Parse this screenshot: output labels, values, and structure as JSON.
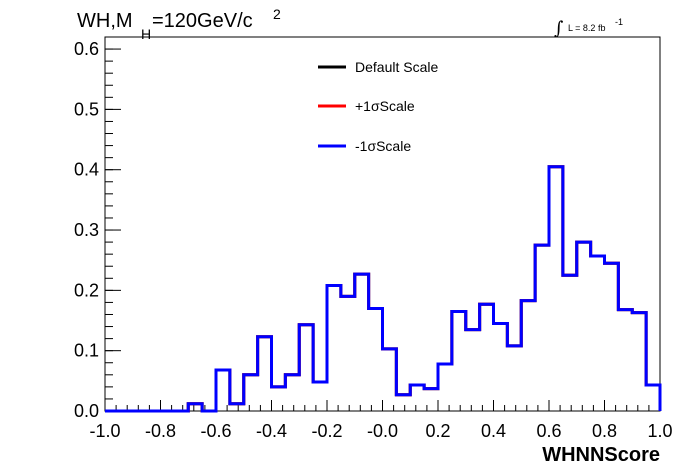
{
  "chart_data": {
    "type": "step",
    "title": {
      "prefix": "WH,M",
      "sub": "H",
      "suffix": "=120GeV/c",
      "sup": "2"
    },
    "lumi": {
      "symbol": "∫",
      "text": "L = 8.2 fb",
      "sup": "-1"
    },
    "xlabel": "WHNNScore",
    "ylabel": "",
    "xlim": [
      -1.0,
      1.0
    ],
    "ylim": [
      0.0,
      0.62
    ],
    "x_ticks": [
      "-1.0",
      "-0.8",
      "-0.6",
      "-0.4",
      "-0.2",
      "-0.0",
      "0.2",
      "0.4",
      "0.6",
      "0.8",
      "1.0"
    ],
    "y_ticks": [
      "0.0",
      "0.1",
      "0.2",
      "0.3",
      "0.4",
      "0.5",
      "0.6"
    ],
    "bin_edges_start": -1.0,
    "bin_width": 0.05,
    "legend": {
      "placement": "top-center",
      "entries": [
        {
          "label": "Default Scale",
          "color": "#000000"
        },
        {
          "label": "+1σScale",
          "color": "#ff0000"
        },
        {
          "label": "-1σScale",
          "color": "#0000ff"
        }
      ]
    },
    "series": [
      {
        "name": "Default Scale",
        "color": "#000000",
        "values": [
          0,
          0,
          0,
          0,
          0,
          0,
          0.012,
          0,
          0.068,
          0.012,
          0.06,
          0.123,
          0.04,
          0.06,
          0.143,
          0.048,
          0.208,
          0.19,
          0.227,
          0.17,
          0.103,
          0.027,
          0.043,
          0.037,
          0.078,
          0.165,
          0.135,
          0.177,
          0.145,
          0.108,
          0.183,
          0.275,
          0.405,
          0.225,
          0.28,
          0.257,
          0.245,
          0.168,
          0.163,
          0.043
        ]
      },
      {
        "name": "+1σScale",
        "color": "#ff0000",
        "values": [
          0,
          0,
          0,
          0,
          0,
          0,
          0.012,
          0,
          0.068,
          0.012,
          0.06,
          0.123,
          0.04,
          0.06,
          0.143,
          0.048,
          0.208,
          0.19,
          0.227,
          0.17,
          0.103,
          0.027,
          0.043,
          0.037,
          0.078,
          0.165,
          0.135,
          0.177,
          0.145,
          0.108,
          0.183,
          0.275,
          0.405,
          0.225,
          0.28,
          0.257,
          0.245,
          0.168,
          0.163,
          0.043
        ]
      },
      {
        "name": "-1σScale",
        "color": "#0000ff",
        "values": [
          0,
          0,
          0,
          0,
          0,
          0,
          0.012,
          0,
          0.068,
          0.012,
          0.06,
          0.123,
          0.04,
          0.06,
          0.143,
          0.048,
          0.208,
          0.19,
          0.227,
          0.17,
          0.103,
          0.027,
          0.043,
          0.037,
          0.078,
          0.165,
          0.135,
          0.177,
          0.145,
          0.108,
          0.183,
          0.275,
          0.405,
          0.225,
          0.28,
          0.257,
          0.245,
          0.168,
          0.163,
          0.043
        ]
      }
    ],
    "grid": false
  }
}
